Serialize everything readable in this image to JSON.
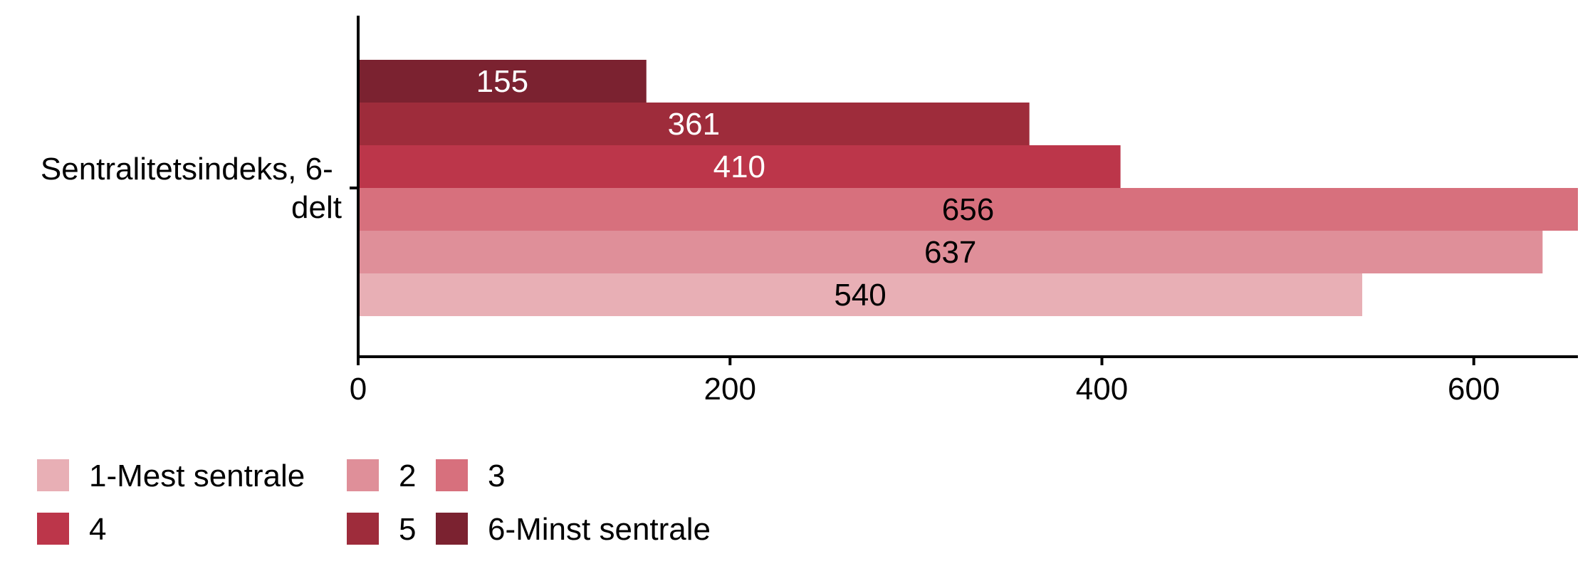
{
  "chart_data": {
    "type": "bar",
    "orientation": "horizontal",
    "category": "Sentralitetsindeks, 6-delt",
    "category_lines": [
      "Sentralitetsindeks, 6-",
      "delt"
    ],
    "series": [
      {
        "name": "6-Minst sentrale",
        "value": 155,
        "color": "#7B2230",
        "label_color": "#ffffff"
      },
      {
        "name": "5",
        "value": 361,
        "color": "#9E2C3B",
        "label_color": "#ffffff"
      },
      {
        "name": "4",
        "value": 410,
        "color": "#BC364A",
        "label_color": "#ffffff"
      },
      {
        "name": "3",
        "value": 656,
        "color": "#D7707D",
        "label_color": "#000000"
      },
      {
        "name": "2",
        "value": 637,
        "color": "#DF8F99",
        "label_color": "#000000"
      },
      {
        "name": "1-Mest sentrale",
        "value": 540,
        "color": "#E8AFB5",
        "label_color": "#000000"
      }
    ],
    "xlim": [
      0,
      656
    ],
    "xticks": [
      0,
      200,
      400,
      600
    ],
    "grid": false,
    "legend": {
      "placement": "bottom-left",
      "rows": [
        [
          "1-Mest sentrale",
          "2",
          "3"
        ],
        [
          "4",
          "5",
          "6-Minst sentrale"
        ]
      ]
    }
  }
}
